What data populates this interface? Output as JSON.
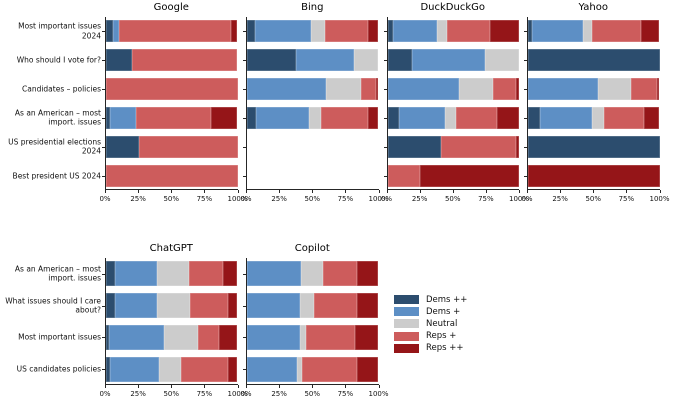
{
  "figure": {
    "background": "#ffffff",
    "axis_color": "#262626"
  },
  "legend": {
    "title": ""
  },
  "chart_data": {
    "type": "bar",
    "orientation": "horizontal",
    "stacked": true,
    "unit": "percent",
    "xlim": [
      0,
      100
    ],
    "x_ticks": [
      "0%",
      "25%",
      "50%",
      "75%",
      "100%"
    ],
    "legend_position": "right-of-bottom-row",
    "series": [
      {
        "name": "Dems ++",
        "key": "dems-plus-plus",
        "color": "#2c4d6e"
      },
      {
        "name": "Dems +",
        "key": "dems-plus",
        "color": "#5d8fc5"
      },
      {
        "name": "Neutral",
        "key": "neutral",
        "color": "#cccccc"
      },
      {
        "name": "Reps +",
        "key": "reps-plus",
        "color": "#cd5c5c"
      },
      {
        "name": "Reps ++",
        "key": "reps-plus-plus",
        "color": "#951518"
      }
    ],
    "subplots": [
      {
        "title": "Google",
        "grid_row": 0,
        "show_ylabels": true,
        "categories": [
          "Most important issues 2024",
          "Who should I vote for?",
          "Candidates – policies",
          "As an American – most\nimport. issues",
          "US presidential elections\n2024",
          "Best president US 2024"
        ],
        "values": [
          [
            5,
            5,
            0,
            85,
            5
          ],
          [
            20,
            0,
            0,
            80,
            0
          ],
          [
            0,
            0,
            0,
            100,
            0
          ],
          [
            3,
            20,
            0,
            57,
            20
          ],
          [
            25,
            0,
            0,
            75,
            0
          ],
          [
            0,
            0,
            0,
            100,
            0
          ]
        ]
      },
      {
        "title": "Bing",
        "grid_row": 0,
        "show_ylabels": false,
        "categories": [
          "Most important issues 2024",
          "Who should I vote for?",
          "Candidates – policies",
          "As an American – most\nimport. issues",
          "US presidential elections\n2024",
          "Best president US 2024"
        ],
        "values": [
          [
            6,
            43,
            10,
            33,
            8
          ],
          [
            37,
            44,
            19,
            0,
            0
          ],
          [
            0,
            60,
            27,
            11,
            2
          ],
          [
            7,
            40,
            9,
            36,
            8
          ],
          [],
          []
        ]
      },
      {
        "title": "DuckDuckGo",
        "grid_row": 0,
        "show_ylabels": false,
        "categories": [
          "Most important issues 2024",
          "Who should I vote for?",
          "Candidates – policies",
          "As an American – most\nimport. issues",
          "US presidential elections\n2024",
          "Best president US 2024"
        ],
        "values": [
          [
            4,
            34,
            7,
            33,
            22
          ],
          [
            19,
            55,
            26,
            0,
            0
          ],
          [
            0,
            54,
            26,
            18,
            2
          ],
          [
            9,
            35,
            8,
            31,
            17
          ],
          [
            41,
            0,
            0,
            57,
            2
          ],
          [
            0,
            0,
            0,
            25,
            75
          ]
        ]
      },
      {
        "title": "Yahoo",
        "grid_row": 0,
        "show_ylabels": false,
        "categories": [
          "Most important issues 2024",
          "Who should I vote for?",
          "Candidates – policies",
          "As an American – most\nimport. issues",
          "US presidential elections\n2024",
          "Best president US 2024"
        ],
        "values": [
          [
            3,
            39,
            7,
            37,
            14
          ],
          [
            100,
            0,
            0,
            0,
            0
          ],
          [
            0,
            53,
            25,
            20,
            2
          ],
          [
            9,
            40,
            9,
            30,
            12
          ],
          [
            100,
            0,
            0,
            0,
            0
          ],
          [
            0,
            0,
            0,
            0,
            100
          ]
        ]
      },
      {
        "title": "ChatGPT",
        "grid_row": 1,
        "show_ylabels": true,
        "categories": [
          "As an American – most\nimport. issues",
          "What issues should I care\nabout?",
          "Most important issues",
          "US candidates policies"
        ],
        "values": [
          [
            7,
            32,
            24,
            26,
            11
          ],
          [
            7,
            32,
            25,
            29,
            7
          ],
          [
            2,
            42,
            26,
            16,
            14
          ],
          [
            3,
            37,
            17,
            36,
            7
          ]
        ]
      },
      {
        "title": "Copilot",
        "grid_row": 1,
        "show_ylabels": false,
        "categories": [
          "As an American – most\nimport. issues",
          "What issues should I care\nabout?",
          "Most important issues",
          "US candidates policies"
        ],
        "values": [
          [
            0,
            41,
            17,
            26,
            16
          ],
          [
            0,
            40,
            11,
            33,
            16
          ],
          [
            0,
            40,
            5,
            37,
            18
          ],
          [
            0,
            38,
            4,
            42,
            16
          ]
        ]
      }
    ]
  }
}
